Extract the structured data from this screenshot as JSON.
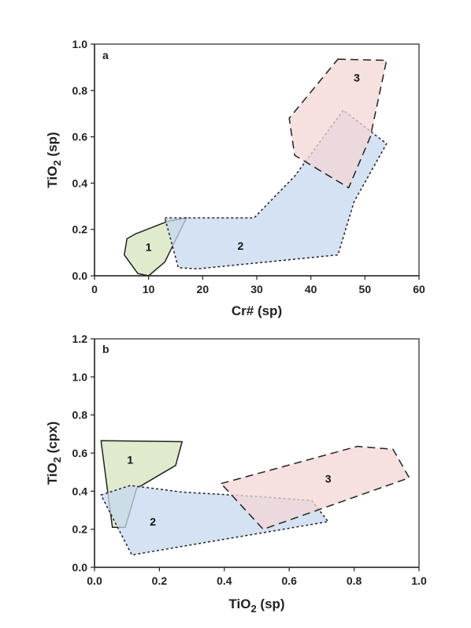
{
  "chart_data": [
    {
      "type": "area",
      "panel_label": "a",
      "xlabel": "Cr# (sp)",
      "ylabel_main": "TiO",
      "ylabel_sub": "2",
      "ylabel_suffix": " (sp)",
      "xlim": [
        0,
        60
      ],
      "ylim": [
        0,
        1.0
      ],
      "xticks": [
        0,
        10,
        20,
        30,
        40,
        50,
        60
      ],
      "xtick_labels": [
        "0",
        "10",
        "20",
        "30",
        "40",
        "50",
        "60"
      ],
      "yticks": [
        0,
        0.2,
        0.4,
        0.6,
        0.8,
        1.0
      ],
      "ytick_labels": [
        "0.0",
        "0.2",
        "0.4",
        "0.6",
        "0.8",
        "1.0"
      ],
      "grid": false,
      "series": [
        {
          "name": "1",
          "fill": "#d6e4bd",
          "stroke": "#222222",
          "dash": "solid",
          "points": [
            [
              6,
              0.16
            ],
            [
              7.5,
              0.18
            ],
            [
              13.5,
              0.235
            ],
            [
              17,
              0.25
            ],
            [
              13,
              0.06
            ],
            [
              10,
              0
            ],
            [
              8,
              0.01
            ],
            [
              5.5,
              0.09
            ]
          ],
          "label_at": [
            10,
            0.125
          ]
        },
        {
          "name": "2",
          "fill": "#c6d8ef",
          "stroke": "#222222",
          "dash": "short",
          "points": [
            [
              13,
              0.25
            ],
            [
              29.5,
              0.25
            ],
            [
              37,
              0.43
            ],
            [
              46,
              0.715
            ],
            [
              54,
              0.57
            ],
            [
              48,
              0.32
            ],
            [
              45,
              0.09
            ],
            [
              19,
              0.03
            ],
            [
              15.5,
              0.035
            ]
          ],
          "label_at": [
            27,
            0.13
          ]
        },
        {
          "name": "3",
          "fill": "#f4d5d5",
          "stroke": "#222222",
          "dash": "long",
          "points": [
            [
              45,
              0.935
            ],
            [
              54,
              0.93
            ],
            [
              51,
              0.6
            ],
            [
              47,
              0.38
            ],
            [
              37,
              0.52
            ],
            [
              36,
              0.68
            ]
          ],
          "label_at": [
            48.5,
            0.855
          ]
        }
      ]
    },
    {
      "type": "area",
      "panel_label": "b",
      "xlabel_main": "TiO",
      "xlabel_sub": "2",
      "xlabel_suffix": " (sp)",
      "ylabel_main": "TiO",
      "ylabel_sub": "2",
      "ylabel_suffix": " (cpx)",
      "xlim": [
        0,
        1.0
      ],
      "ylim": [
        0,
        1.2
      ],
      "xticks": [
        0,
        0.2,
        0.4,
        0.6,
        0.8,
        1.0
      ],
      "xtick_labels": [
        "0.0",
        "0.2",
        "0.4",
        "0.6",
        "0.8",
        "1.0"
      ],
      "yticks": [
        0,
        0.2,
        0.4,
        0.6,
        0.8,
        1.0,
        1.2
      ],
      "ytick_labels": [
        "0.0",
        "0.2",
        "0.4",
        "0.6",
        "0.8",
        "1.0",
        "1.2"
      ],
      "grid": false,
      "series": [
        {
          "name": "1",
          "fill": "#d6e4bd",
          "stroke": "#222222",
          "dash": "solid",
          "points": [
            [
              0.02,
              0.665
            ],
            [
              0.27,
              0.66
            ],
            [
              0.25,
              0.535
            ],
            [
              0.13,
              0.415
            ],
            [
              0.095,
              0.21
            ],
            [
              0.055,
              0.21
            ]
          ],
          "label_at": [
            0.11,
            0.565
          ]
        },
        {
          "name": "2",
          "fill": "#c6d8ef",
          "stroke": "#222222",
          "dash": "short",
          "points": [
            [
              0.02,
              0.38
            ],
            [
              0.11,
              0.43
            ],
            [
              0.27,
              0.395
            ],
            [
              0.52,
              0.37
            ],
            [
              0.67,
              0.35
            ],
            [
              0.72,
              0.24
            ],
            [
              0.115,
              0.065
            ]
          ],
          "label_at": [
            0.18,
            0.24
          ]
        },
        {
          "name": "3",
          "fill": "#f4d5d5",
          "stroke": "#222222",
          "dash": "long",
          "points": [
            [
              0.39,
              0.44
            ],
            [
              0.81,
              0.635
            ],
            [
              0.92,
              0.62
            ],
            [
              0.97,
              0.47
            ],
            [
              0.52,
              0.2
            ]
          ],
          "label_at": [
            0.72,
            0.465
          ]
        }
      ]
    }
  ]
}
